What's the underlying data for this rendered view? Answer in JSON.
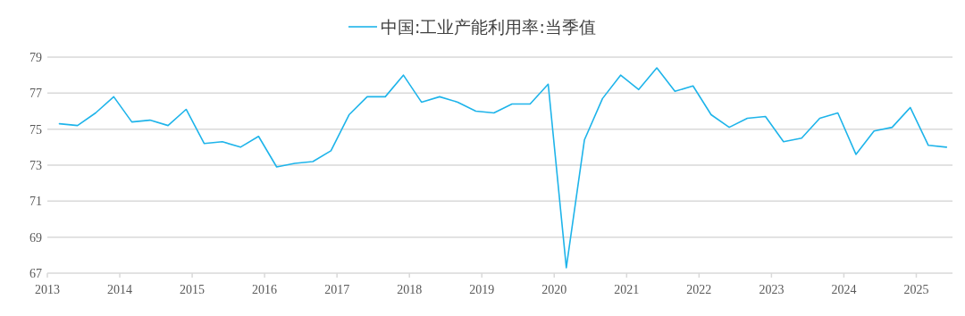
{
  "chart_data": {
    "type": "line",
    "x": [
      "2013-03",
      "2013-06",
      "2013-09",
      "2013-12",
      "2014-03",
      "2014-06",
      "2014-09",
      "2014-12",
      "2015-03",
      "2015-06",
      "2015-09",
      "2015-12",
      "2016-03",
      "2016-06",
      "2016-09",
      "2016-12",
      "2017-03",
      "2017-06",
      "2017-09",
      "2017-12",
      "2018-03",
      "2018-06",
      "2018-09",
      "2018-12",
      "2019-03",
      "2019-06",
      "2019-09",
      "2019-12",
      "2020-03",
      "2020-06",
      "2020-09",
      "2020-12",
      "2021-03",
      "2021-06",
      "2021-09",
      "2021-12",
      "2022-03",
      "2022-06",
      "2022-09",
      "2022-12",
      "2023-03",
      "2023-06",
      "2023-09",
      "2023-12",
      "2024-03",
      "2024-06",
      "2024-09",
      "2024-12",
      "2025-03",
      "2025-06"
    ],
    "series": [
      {
        "name": "中国:工业产能利用率:当季值",
        "color": "#1eb4ea",
        "values": [
          75.3,
          75.2,
          75.9,
          76.8,
          75.4,
          75.5,
          75.2,
          76.1,
          74.2,
          74.3,
          74.0,
          74.6,
          72.9,
          73.1,
          73.2,
          73.8,
          75.8,
          76.8,
          76.8,
          78.0,
          76.5,
          76.8,
          76.5,
          76.0,
          75.9,
          76.4,
          76.4,
          77.5,
          67.3,
          74.4,
          76.7,
          78.0,
          77.2,
          78.4,
          77.1,
          77.4,
          75.8,
          75.1,
          75.6,
          75.7,
          74.3,
          74.5,
          75.6,
          75.9,
          73.6,
          74.9,
          75.1,
          76.2,
          74.1,
          74.0
        ]
      }
    ],
    "xlim": [
      "2013",
      "2025-07"
    ],
    "xticks": [
      {
        "value": "2013",
        "label": "2013"
      },
      {
        "value": "2014",
        "label": "2014"
      },
      {
        "value": "2015",
        "label": "2015"
      },
      {
        "value": "2016",
        "label": "2016"
      },
      {
        "value": "2017",
        "label": "2017"
      },
      {
        "value": "2018",
        "label": "2018"
      },
      {
        "value": "2019",
        "label": "2019"
      },
      {
        "value": "2020",
        "label": "2020"
      },
      {
        "value": "2021",
        "label": "2021"
      },
      {
        "value": "2022",
        "label": "2022"
      },
      {
        "value": "2023",
        "label": "2023"
      },
      {
        "value": "2024",
        "label": "2024"
      },
      {
        "value": "2025",
        "label": "2025"
      }
    ],
    "ylim": [
      67,
      79
    ],
    "yticks": [
      67,
      69,
      71,
      73,
      75,
      77,
      79
    ],
    "grid": "y",
    "legend": "top",
    "marker": "none",
    "line_style": "solid"
  }
}
